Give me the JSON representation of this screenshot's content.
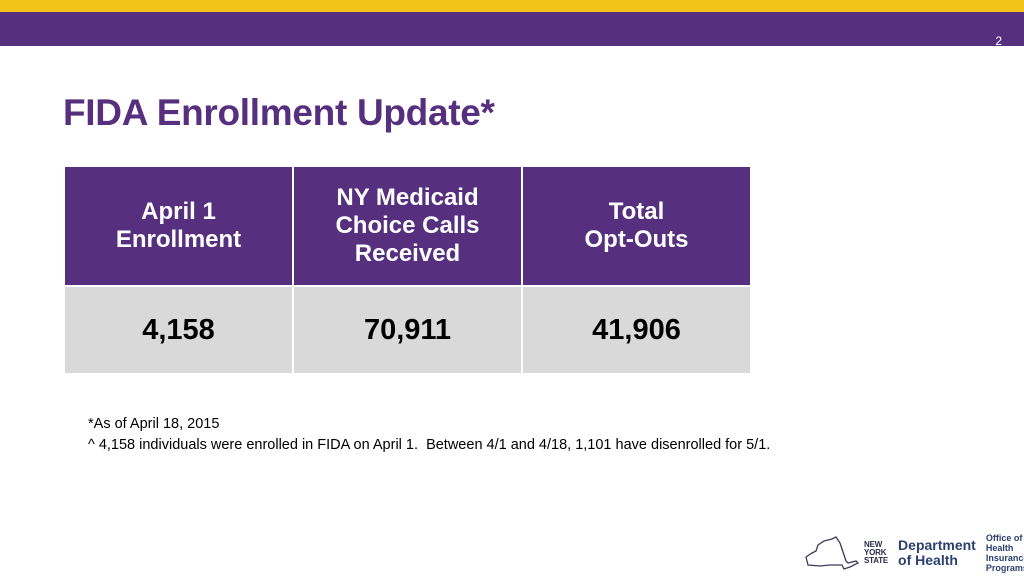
{
  "header": {
    "page_number": "2"
  },
  "slide": {
    "title": "FIDA Enrollment Update*"
  },
  "table": {
    "headers": [
      [
        "April 1",
        "Enrollment"
      ],
      [
        "NY Medicaid",
        "Choice Calls",
        "Received"
      ],
      [
        "Total",
        "Opt-Outs"
      ]
    ],
    "values": [
      "4,158",
      "70,911",
      "41,906"
    ]
  },
  "footnotes": [
    "*As of April 18, 2015",
    "^ 4,158 individuals were enrolled in FIDA on April 1.  Between 4/1 and 4/18, 1,101 have disenrolled for 5/1."
  ],
  "logo": {
    "state_text": [
      "NEW",
      "YORK",
      "STATE"
    ],
    "department": [
      "Department",
      "of Health"
    ],
    "office": [
      "Office of",
      "Health Insurance",
      "Programs"
    ]
  },
  "colors": {
    "brand_purple": "#56307e",
    "brand_gold": "#f2c319",
    "cell_gray": "#d9d9d9"
  }
}
